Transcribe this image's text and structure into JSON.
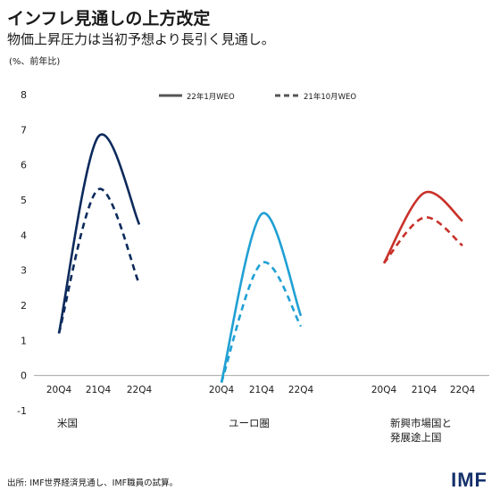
{
  "header": {
    "title": "インフレ見通しの上方改定",
    "subtitle": "物価上昇圧力は当初予想より長引く見通し。",
    "units": "(%、前年比)"
  },
  "footer": {
    "source": "出所: IMF世界経済見通し、IMF職員の試算。",
    "logo": "IMF"
  },
  "chart_data": {
    "type": "line",
    "ylim": [
      -1,
      8
    ],
    "yticks": [
      "8",
      "7",
      "6",
      "5",
      "4",
      "3",
      "2",
      "1",
      "0",
      "-1"
    ],
    "grid": false,
    "legend_position": "top",
    "legend": [
      {
        "name": "22年1月WEO",
        "style": "solid"
      },
      {
        "name": "21年10月WEO",
        "style": "dashed"
      }
    ],
    "x": [
      "20Q4",
      "21Q4",
      "22Q4"
    ],
    "groups": [
      {
        "label": "米国",
        "color": "#0c2a5c",
        "series": [
          {
            "name": "22年1月WEO",
            "values": [
              1.2,
              6.8,
              4.3
            ]
          },
          {
            "name": "21年10月WEO",
            "values": [
              1.2,
              5.3,
              2.6
            ]
          }
        ]
      },
      {
        "label": "ユーロ圏",
        "color": "#1fa0d4",
        "series": [
          {
            "name": "22年1月WEO",
            "values": [
              -0.2,
              4.6,
              1.7
            ]
          },
          {
            "name": "21年10月WEO",
            "values": [
              -0.2,
              3.2,
              1.4
            ]
          }
        ]
      },
      {
        "label": "新興市場国と\n発展途上国",
        "color": "#c8312a",
        "series": [
          {
            "name": "22年1月WEO",
            "values": [
              3.2,
              5.2,
              4.4
            ]
          },
          {
            "name": "21年10月WEO",
            "values": [
              3.2,
              4.5,
              3.7
            ]
          }
        ]
      }
    ]
  }
}
